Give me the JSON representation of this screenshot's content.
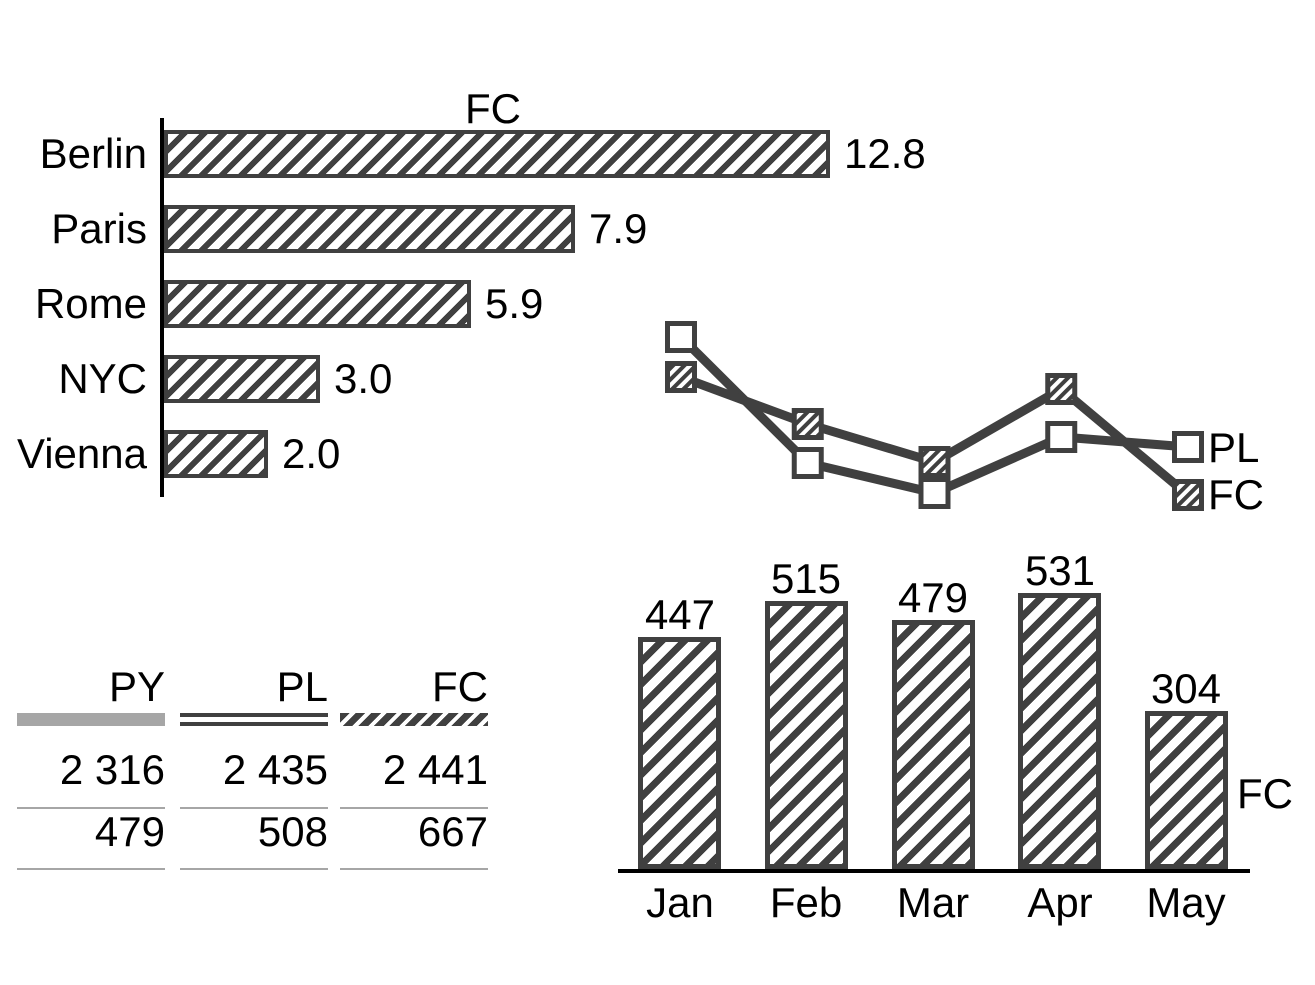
{
  "colors": {
    "dark_gray": "#404040",
    "medium_gray": "#a6a6a6",
    "rule_gray": "#a6a6a6",
    "axis_black": "#000000",
    "background": "#ffffff"
  },
  "chart_data": [
    {
      "id": "city_bar",
      "type": "bar",
      "orientation": "horizontal",
      "title": "FC",
      "categories": [
        "Berlin",
        "Paris",
        "Rome",
        "NYC",
        "Vienna"
      ],
      "values": [
        12.8,
        7.9,
        5.9,
        3.0,
        2.0
      ],
      "value_labels": [
        "12.8",
        "7.9",
        "5.9",
        "3.0",
        "2.0"
      ],
      "xlim": [
        0,
        12.8
      ],
      "grid": false,
      "bar_style": "diagonal-hatch",
      "value_label_position": "right-of-bar"
    },
    {
      "id": "trend_line",
      "type": "line",
      "axes_shown": false,
      "points_per_series": 5,
      "series": [
        {
          "name": "PL",
          "marker": "open-square",
          "values_est": [
            18.3,
            5.7,
            2.7,
            8.3,
            7.3
          ]
        },
        {
          "name": "FC",
          "marker": "hatched-square",
          "values_est": [
            14.3,
            9.6,
            5.8,
            13.1,
            2.5
          ]
        }
      ],
      "legend_position": "right-of-last-point",
      "note": "no axis or tick labels shown; values estimated from marker positions, arbitrary units"
    },
    {
      "id": "month_bar",
      "type": "bar",
      "orientation": "vertical",
      "categories": [
        "Jan",
        "Feb",
        "Mar",
        "Apr",
        "May"
      ],
      "values": [
        447,
        515,
        479,
        531,
        304
      ],
      "value_labels": [
        "447",
        "515",
        "479",
        "531",
        "304"
      ],
      "series_label": "FC",
      "ylim": [
        0,
        531
      ],
      "grid": false,
      "bar_style": "diagonal-hatch",
      "value_label_position": "above-bar"
    },
    {
      "id": "summary_table",
      "type": "table",
      "columns": [
        {
          "header": "PY",
          "swatch": "solid-gray",
          "values": [
            "2 316",
            "479"
          ]
        },
        {
          "header": "PL",
          "swatch": "double-line",
          "values": [
            "2 435",
            "508"
          ]
        },
        {
          "header": "FC",
          "swatch": "hatched",
          "values": [
            "2 441",
            "667"
          ]
        }
      ]
    }
  ]
}
